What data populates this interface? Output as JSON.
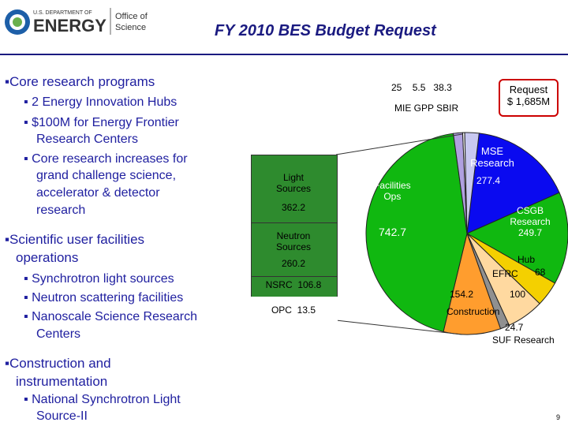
{
  "header": {
    "logo_line1": "U.S. DEPARTMENT OF",
    "logo_line2": "ENERGY",
    "office_line1": "Office of",
    "office_line2": "Science",
    "title": "FY 2010 BES Budget Request"
  },
  "bullets": {
    "b1": "Core research programs",
    "b1a": "2 Energy Innovation Hubs",
    "b1b": "$100M for Energy Frontier",
    "b1b2": "Research Centers",
    "b1c": "Core research increases for",
    "b1c2": "grand challenge science,",
    "b1c3": "accelerator & detector",
    "b1c4": "research",
    "b2": "Scientific user facilities",
    "b2b": "operations",
    "b2a": "Synchrotron light sources",
    "b2c": "Neutron scattering facilities",
    "b2d": "Nanoscale Science Research",
    "b2d2": "Centers",
    "b3": "Construction and",
    "b3b": "instrumentation",
    "b3a": "National Synchrotron Light",
    "b3a2": "Source-II"
  },
  "page_number": "9",
  "colors": {
    "title": "#1a1a80",
    "bullet_text": "#2020a0",
    "light_sources_box": "#2e8b2e",
    "neutron_box": "#2e8b2e",
    "nsrc_box": "#2e8b2e",
    "opc_box": "#ffffff"
  },
  "chart_data": {
    "type": "pie",
    "labels": {
      "request": "Request",
      "request_value": "$ 1,685M",
      "top_values": [
        "25",
        "5.5",
        "38.3"
      ],
      "top_names": "MIE GPP SBIR",
      "mse": "MSE",
      "mse2": "Research",
      "mse_val": "277.4",
      "csgb": "CSGB",
      "csgb2": "Research",
      "csgb_val": "249.7",
      "hub": "Hub",
      "hub_val": "68",
      "efrc": "EFRC",
      "efrc_val": "100",
      "construction": "Construction",
      "construction_val": "154.2",
      "suf_val": "24.7",
      "suf": "SUF Research",
      "facilities": "Facilities",
      "facilities2": "Ops",
      "facilities_val": "742.7",
      "light": "Light",
      "light2": "Sources",
      "light_val": "362.2",
      "neutron": "Neutron",
      "neutron2": "Sources",
      "neutron_val": "260.2",
      "nsrc": "NSRC",
      "nsrc_val": "106.8",
      "opc": "OPC",
      "opc_val": "13.5"
    },
    "slices": [
      {
        "name": "MSE Research",
        "value": 277.4,
        "color": "#0a0af0"
      },
      {
        "name": "CSGB Research",
        "value": 249.7,
        "color": "#10b810"
      },
      {
        "name": "Hub",
        "value": 68,
        "color": "#f4d000"
      },
      {
        "name": "EFRC",
        "value": 100,
        "color": "#ffd9a0"
      },
      {
        "name": "SUF Research",
        "value": 24.7,
        "color": "#909090"
      },
      {
        "name": "Construction",
        "value": 154.2,
        "color": "#ff9d2e"
      },
      {
        "name": "Facilities Ops",
        "value": 742.7,
        "color": "#10b810"
      },
      {
        "name": "MIE",
        "value": 25,
        "color": "#b0a0e0"
      },
      {
        "name": "GPP",
        "value": 5.5,
        "color": "#ffffff"
      },
      {
        "name": "SBIR",
        "value": 38.3,
        "color": "#c8c8f0"
      }
    ]
  }
}
